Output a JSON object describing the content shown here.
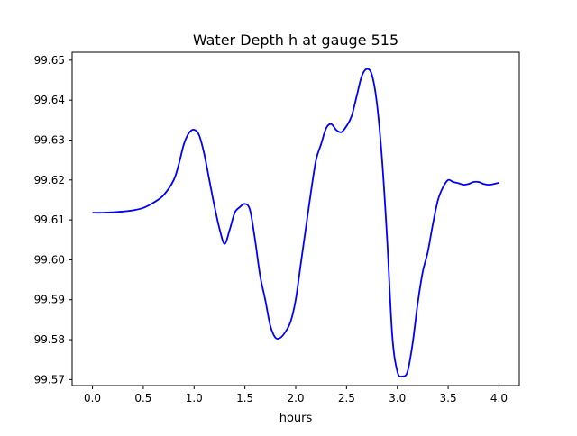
{
  "chart_data": {
    "type": "line",
    "title": "Water Depth h at gauge 515",
    "xlabel": "hours",
    "ylabel": "",
    "xlim": [
      -0.2,
      4.2
    ],
    "ylim": [
      99.5685,
      99.652
    ],
    "x_ticks": [
      0.0,
      0.5,
      1.0,
      1.5,
      2.0,
      2.5,
      3.0,
      3.5,
      4.0
    ],
    "x_tick_labels": [
      "0.0",
      "0.5",
      "1.0",
      "1.5",
      "2.0",
      "2.5",
      "3.0",
      "3.5",
      "4.0"
    ],
    "y_ticks": [
      99.57,
      99.58,
      99.59,
      99.6,
      99.61,
      99.62,
      99.63,
      99.64,
      99.65
    ],
    "y_tick_labels": [
      "99.57",
      "99.58",
      "99.59",
      "99.60",
      "99.61",
      "99.62",
      "99.63",
      "99.64",
      "99.65"
    ],
    "grid": false,
    "series": [
      {
        "color": "#0000ff",
        "x": [
          0.0,
          0.1,
          0.2,
          0.3,
          0.4,
          0.5,
          0.6,
          0.7,
          0.8,
          0.85,
          0.9,
          0.95,
          1.0,
          1.05,
          1.1,
          1.15,
          1.2,
          1.25,
          1.3,
          1.35,
          1.4,
          1.45,
          1.5,
          1.55,
          1.6,
          1.65,
          1.7,
          1.75,
          1.8,
          1.85,
          1.9,
          1.95,
          2.0,
          2.05,
          2.1,
          2.15,
          2.2,
          2.25,
          2.3,
          2.35,
          2.4,
          2.45,
          2.5,
          2.55,
          2.6,
          2.65,
          2.7,
          2.75,
          2.8,
          2.85,
          2.9,
          2.95,
          3.0,
          3.05,
          3.1,
          3.15,
          3.2,
          3.25,
          3.3,
          3.35,
          3.4,
          3.45,
          3.5,
          3.55,
          3.6,
          3.65,
          3.7,
          3.75,
          3.8,
          3.85,
          3.9,
          3.95,
          4.0
        ],
        "y": [
          99.6118,
          99.6118,
          99.6119,
          99.6121,
          99.6124,
          99.613,
          99.6143,
          99.6162,
          99.62,
          99.624,
          99.629,
          99.6318,
          99.6326,
          99.6312,
          99.6265,
          99.62,
          99.6135,
          99.6078,
          99.604,
          99.6075,
          99.6118,
          99.6132,
          99.614,
          99.6125,
          99.605,
          99.596,
          99.59,
          99.5835,
          99.5805,
          99.5805,
          99.582,
          99.5845,
          99.59,
          99.599,
          99.608,
          99.617,
          99.625,
          99.629,
          99.633,
          99.634,
          99.6325,
          99.632,
          99.6335,
          99.636,
          99.641,
          99.646,
          99.6478,
          99.6463,
          99.639,
          99.625,
          99.605,
          99.581,
          99.572,
          99.5708,
          99.572,
          99.579,
          99.589,
          99.597,
          99.602,
          99.609,
          99.615,
          99.6182,
          99.62,
          99.6195,
          99.6192,
          99.6188,
          99.619,
          99.6195,
          99.6195,
          99.619,
          99.6188,
          99.619,
          99.6193
        ]
      }
    ]
  }
}
